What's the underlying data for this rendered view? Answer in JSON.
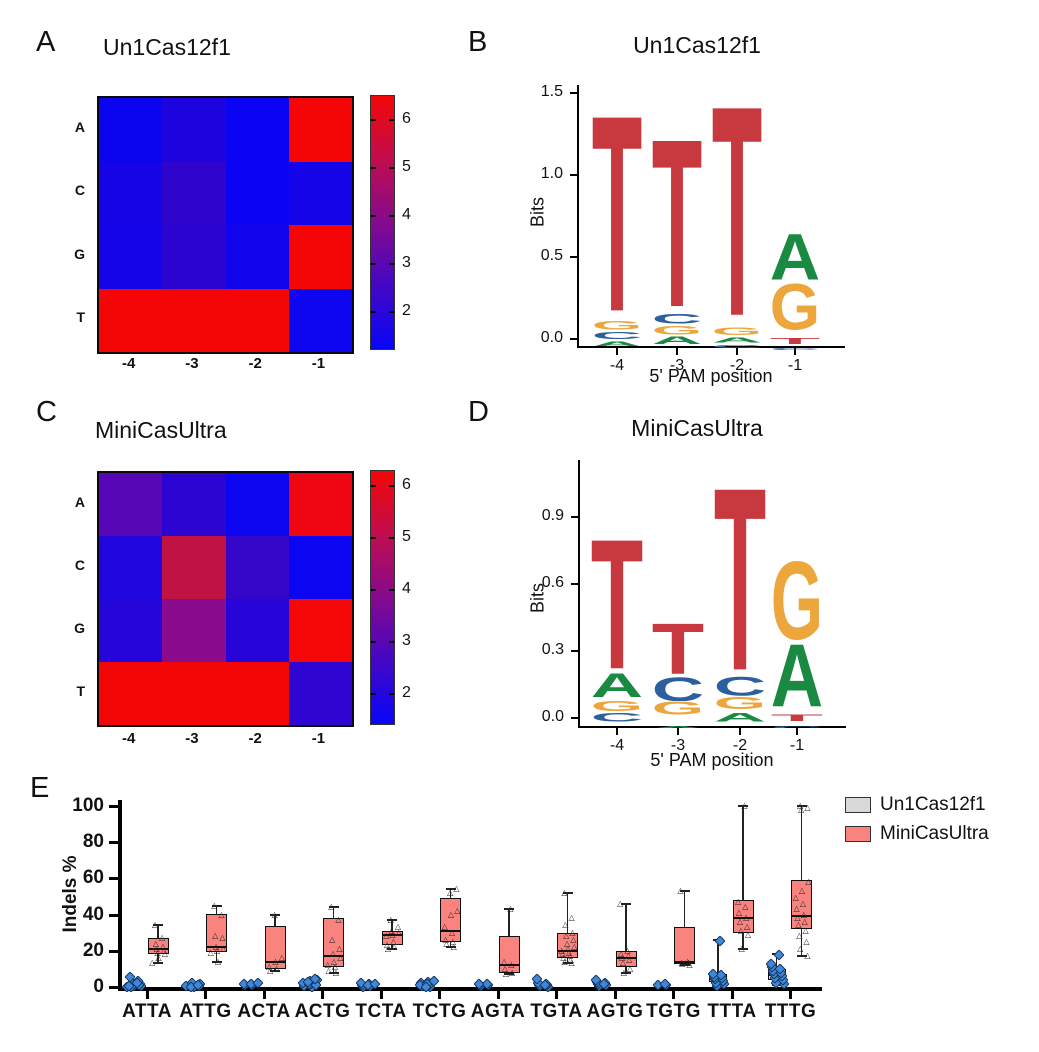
{
  "panels": {
    "A": {
      "label": "A",
      "title": "Un1Cas12f1"
    },
    "B": {
      "label": "B",
      "title": "Un1Cas12f1"
    },
    "C": {
      "label": "C",
      "title": "MiniCasUltra"
    },
    "D": {
      "label": "D",
      "title": "MiniCasUltra"
    },
    "E": {
      "label": "E"
    }
  },
  "chart_data": [
    {
      "id": "hmA",
      "type": "heatmap",
      "title": "Un1Cas12f1",
      "rows": [
        "A",
        "C",
        "G",
        "T"
      ],
      "cols": [
        "-4",
        "-3",
        "-2",
        "-1"
      ],
      "values": [
        [
          1.6,
          2.1,
          1.6,
          6.4
        ],
        [
          1.8,
          2.5,
          1.6,
          1.8
        ],
        [
          1.8,
          2.4,
          1.7,
          6.4
        ],
        [
          6.4,
          6.4,
          6.4,
          1.6
        ]
      ],
      "colors": [
        [
          "#0b04ee",
          "#1d04df",
          "#0a04f2",
          "#f40606"
        ],
        [
          "#1604e6",
          "#2f04cd",
          "#0a04f2",
          "#1504e8"
        ],
        [
          "#1504e7",
          "#2b04d2",
          "#1104ec",
          "#f40606"
        ],
        [
          "#f40606",
          "#f40606",
          "#f40606",
          "#0d04f0"
        ]
      ],
      "colorbar": {
        "ticks": [
          6,
          5,
          4,
          3,
          2
        ],
        "gradient": [
          "#0806f8",
          "#4307c4",
          "#840a8e",
          "#c00d4e",
          "#f30707"
        ]
      }
    },
    {
      "id": "logoB",
      "type": "logo",
      "title": "Un1Cas12f1",
      "ylabel": "Bits",
      "xlabel": "5' PAM position",
      "yticks": [
        0.0,
        0.5,
        1.0,
        1.5
      ],
      "positions": [
        "-4",
        "-3",
        "-2",
        "-1"
      ],
      "letter_colors": {
        "A": "#1a8a43",
        "C": "#2b5f9e",
        "G": "#eda63c",
        "T": "#c7393f"
      },
      "stacks": [
        [
          {
            "l": "A",
            "h": 0.035
          },
          {
            "l": "C",
            "h": 0.045
          },
          {
            "l": "G",
            "h": 0.055
          },
          {
            "l": "T",
            "h": 1.285
          }
        ],
        [
          {
            "l": "A",
            "h": 0.05
          },
          {
            "l": "G",
            "h": 0.055
          },
          {
            "l": "C",
            "h": 0.065
          },
          {
            "l": "T",
            "h": 1.1
          }
        ],
        [
          {
            "l": "C",
            "h": 0.02
          },
          {
            "l": "A",
            "h": 0.035
          },
          {
            "l": "G",
            "h": 0.05
          },
          {
            "l": "T",
            "h": 1.375
          }
        ],
        [
          {
            "l": "C",
            "h": 0.012
          },
          {
            "l": "T",
            "h": 0.038
          },
          {
            "l": "G",
            "h": 0.3
          },
          {
            "l": "A",
            "h": 0.3
          }
        ]
      ]
    },
    {
      "id": "hmC",
      "type": "heatmap",
      "title": "MiniCasUltra",
      "rows": [
        "A",
        "C",
        "G",
        "T"
      ],
      "cols": [
        "-4",
        "-3",
        "-2",
        "-1"
      ],
      "values": [
        [
          3.3,
          2.3,
          1.7,
          6.2
        ],
        [
          2.0,
          5.2,
          2.5,
          1.7
        ],
        [
          2.1,
          3.9,
          2.2,
          6.3
        ],
        [
          6.3,
          6.3,
          6.3,
          2.3
        ]
      ],
      "colors": [
        [
          "#5707b5",
          "#2c05d3",
          "#0d05ef",
          "#ee0712"
        ],
        [
          "#2105de",
          "#c11244",
          "#3406c7",
          "#0b05f1"
        ],
        [
          "#2405da",
          "#8a0b8e",
          "#2705d8",
          "#f30707"
        ],
        [
          "#f20606",
          "#f20606",
          "#f20606",
          "#2e05d1"
        ]
      ],
      "colorbar": {
        "ticks": [
          6,
          5,
          4,
          3,
          2
        ],
        "gradient": [
          "#0806f8",
          "#4307c4",
          "#840a8e",
          "#c00d4e",
          "#f30707"
        ]
      }
    },
    {
      "id": "logoD",
      "type": "logo",
      "title": "MiniCasUltra",
      "ylabel": "Bits",
      "xlabel": "5' PAM position",
      "yticks": [
        0.0,
        0.3,
        0.6,
        0.9
      ],
      "positions": [
        "-4",
        "-3",
        "-2",
        "-1"
      ],
      "letter_colors": {
        "A": "#1a8a43",
        "C": "#2b5f9e",
        "G": "#eda63c",
        "T": "#c7393f"
      },
      "stacks": [
        [
          {
            "l": "C",
            "h": 0.04
          },
          {
            "l": "G",
            "h": 0.05
          },
          {
            "l": "A",
            "h": 0.115
          },
          {
            "l": "T",
            "h": 0.625
          }
        ],
        [
          {
            "l": "A",
            "h": 0.012
          },
          {
            "l": "G",
            "h": 0.062
          },
          {
            "l": "C",
            "h": 0.115
          },
          {
            "l": "T",
            "h": 0.245
          }
        ],
        [
          {
            "l": "A",
            "h": 0.04
          },
          {
            "l": "G",
            "h": 0.06
          },
          {
            "l": "C",
            "h": 0.09
          },
          {
            "l": "T",
            "h": 0.88
          }
        ],
        [
          {
            "l": "C",
            "h": 0.012
          },
          {
            "l": "T",
            "h": 0.032
          },
          {
            "l": "A",
            "h": 0.3
          },
          {
            "l": "G",
            "h": 0.375
          }
        ]
      ]
    },
    {
      "id": "boxE",
      "type": "box",
      "ylabel": "Indels %",
      "ylim": [
        0,
        100
      ],
      "yticks": [
        0,
        20,
        40,
        60,
        80,
        100
      ],
      "categories": [
        "ATTA",
        "ATTG",
        "ACTA",
        "ACTG",
        "TCTA",
        "TCTG",
        "AGTA",
        "TGTA",
        "AGTG",
        "TGTG",
        "TTTA",
        "TTTG"
      ],
      "series": [
        {
          "name": "Un1Cas12f1",
          "color": "#d9d9d9",
          "pointColor": "#3f87d9"
        },
        {
          "name": "MiniCasUltra",
          "color": "#f8837f",
          "pointColor": "#222222"
        }
      ],
      "groups": [
        {
          "label": "ATTA",
          "un1": {
            "points": [
              0.4,
              0.9,
              1.3,
              1.8,
              2.3,
              3,
              1.5,
              0.7,
              4,
              6,
              2.7,
              1.1
            ]
          },
          "mini": {
            "whiskers": [
              13,
              34
            ],
            "box": [
              18,
              21,
              27
            ],
            "points": [
              13,
              16,
              18,
              19,
              20,
              21,
              22,
              24,
              27,
              34
            ]
          }
        },
        {
          "label": "ATTG",
          "un1": {
            "points": [
              0.5,
              1,
              1.5,
              2,
              2.5,
              1.2,
              0.8,
              1.9
            ]
          },
          "mini": {
            "whiskers": [
              14,
              45
            ],
            "box": [
              19.5,
              22,
              40.5
            ],
            "points": [
              14,
              19,
              20,
              21,
              22,
              27,
              28,
              40,
              45
            ]
          }
        },
        {
          "label": "ACTA",
          "un1": {
            "points": [
              1.4,
              1.7,
              2,
              2.3,
              2.6
            ]
          },
          "mini": {
            "whiskers": [
              9,
              40
            ],
            "box": [
              10,
              14,
              33.5
            ],
            "points": [
              9,
              10,
              11,
              14,
              16,
              40
            ]
          }
        },
        {
          "label": "ACTG",
          "un1": {
            "points": [
              0.5,
              1.2,
              2,
              2.8,
              3.6,
              4.5,
              2.3,
              1.6,
              3.1,
              5
            ]
          },
          "mini": {
            "whiskers": [
              8,
              44
            ],
            "box": [
              11,
              17,
              38
            ],
            "points": [
              8,
              9,
              11,
              12,
              14,
              16,
              18,
              21,
              26,
              37,
              44
            ]
          }
        },
        {
          "label": "TCTA",
          "un1": {
            "points": [
              0.8,
              1.2,
              1.8,
              2.4,
              3,
              1.5,
              2.1
            ]
          },
          "mini": {
            "whiskers": [
              21,
              37
            ],
            "box": [
              23,
              28.5,
              31
            ],
            "points": [
              21,
              22,
              23,
              25,
              28,
              29,
              30,
              31,
              33,
              37
            ]
          }
        },
        {
          "label": "TCTG",
          "un1": {
            "points": [
              0.5,
              1,
              1.8,
              2.6,
              3.4,
              1.4,
              2.2,
              4,
              0.8
            ]
          },
          "mini": {
            "whiskers": [
              22,
              54
            ],
            "box": [
              25,
              31,
              49
            ],
            "points": [
              22,
              24,
              25,
              26,
              30,
              33,
              40,
              42,
              52,
              54
            ]
          }
        },
        {
          "label": "AGTA",
          "un1": {
            "points": [
              1,
              1.4,
              1.8,
              2,
              2.3
            ]
          },
          "mini": {
            "whiskers": [
              7,
              43
            ],
            "box": [
              8,
              12,
              28
            ],
            "points": [
              7,
              8,
              10,
              12,
              14,
              43
            ]
          }
        },
        {
          "label": "TGTA",
          "un1": {
            "points": [
              0.4,
              0.9,
              1.4,
              1.9,
              2.4,
              3,
              1.6,
              5
            ]
          },
          "mini": {
            "whiskers": [
              13,
              52
            ],
            "box": [
              16,
              20,
              30
            ],
            "points": [
              13,
              14,
              15,
              16,
              17,
              18,
              19,
              20,
              21,
              22,
              24,
              26,
              28,
              30,
              34,
              38,
              52
            ]
          }
        },
        {
          "label": "AGTG",
          "un1": {
            "points": [
              1,
              1.6,
              2.2,
              2.8,
              3.4,
              2,
              4.2
            ]
          },
          "mini": {
            "whiskers": [
              8,
              46
            ],
            "box": [
              11,
              16,
              20
            ],
            "points": [
              8,
              10,
              13,
              15,
              16,
              17,
              18,
              20,
              46
            ]
          }
        },
        {
          "label": "TGTG",
          "un1": {
            "points": [
              1.4,
              1.9,
              2.4
            ]
          },
          "mini": {
            "whiskers": [
              12,
              53
            ],
            "box": [
              12.5,
              14,
              33
            ],
            "points": [
              12,
              12.5,
              13,
              13.5,
              14,
              53
            ]
          }
        },
        {
          "label": "TTTA",
          "un1": {
            "whiskers": [
              0.5,
              26
            ],
            "box": [
              3,
              4.5,
              7
            ],
            "points": [
              1,
              2,
              3,
              4,
              5,
              5.5,
              6,
              7,
              8,
              26
            ]
          },
          "mini": {
            "whiskers": [
              21,
              100
            ],
            "box": [
              30,
              38,
              48
            ],
            "points": [
              21,
              29,
              31,
              33,
              36,
              38,
              41,
              44,
              47,
              100
            ]
          }
        },
        {
          "label": "TTTG",
          "un1": {
            "whiskers": [
              1,
              18
            ],
            "box": [
              4,
              6.5,
              10
            ],
            "points": [
              2,
              3,
              4.5,
              5.5,
              6.5,
              7.5,
              8.5,
              9.5,
              10.5,
              11.5,
              18,
              13
            ]
          },
          "mini": {
            "whiskers": [
              17,
              100
            ],
            "box": [
              32,
              39,
              59
            ],
            "points": [
              17,
              21,
              25,
              28,
              31,
              34,
              36,
              38,
              40,
              43,
              46,
              49,
              53,
              58,
              98,
              99,
              100
            ]
          }
        }
      ],
      "legend": {
        "position": "right-top"
      }
    }
  ]
}
